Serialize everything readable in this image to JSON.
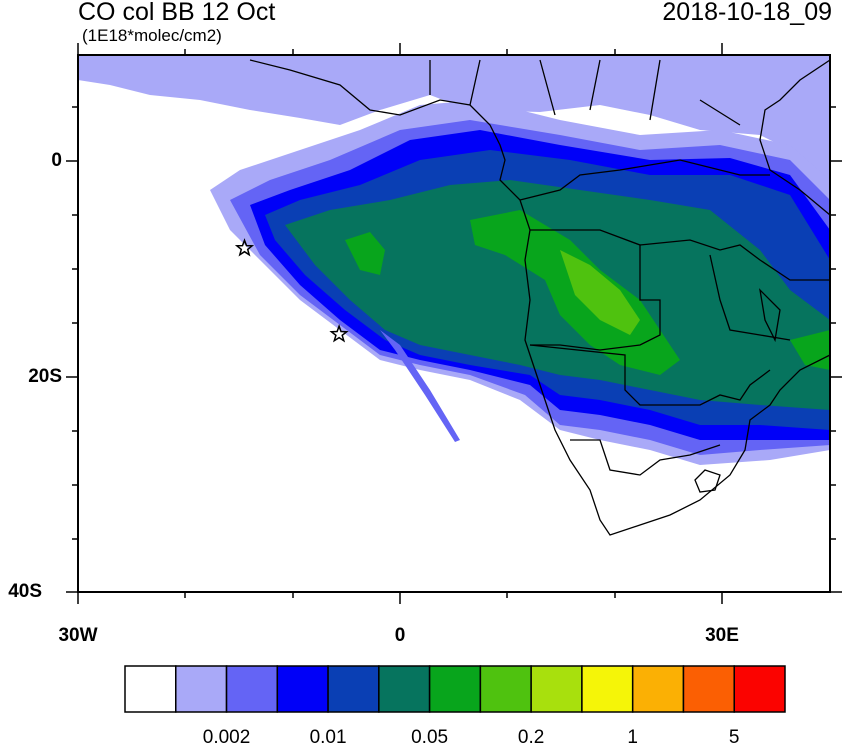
{
  "header": {
    "title": "CO col BB 12 Oct",
    "units": "(1E18*molec/cm2)",
    "datetime": "2018-10-18_09"
  },
  "axes": {
    "lat_ticks": [
      "0",
      "20S",
      "40S"
    ],
    "lon_ticks": [
      "30W",
      "0",
      "30E"
    ]
  },
  "markers": [
    {
      "name": "star-1",
      "lon": -14.5,
      "lat": -8.0
    },
    {
      "name": "star-2",
      "lon": -5.7,
      "lat": -16.0
    }
  ],
  "colorbar": {
    "colors": [
      "#ffffff",
      "#a9a9f8",
      "#6464f5",
      "#0000f8",
      "#0a3fb4",
      "#06745e",
      "#08a51c",
      "#4fc20f",
      "#a8e00d",
      "#f5f508",
      "#fbb004",
      "#fb5f03",
      "#fb0300"
    ],
    "labels": [
      "0.002",
      "0.01",
      "0.05",
      "0.2",
      "1",
      "5"
    ]
  },
  "palette": {
    "land_outline": "#000000",
    "ocean": "#ffffff"
  }
}
